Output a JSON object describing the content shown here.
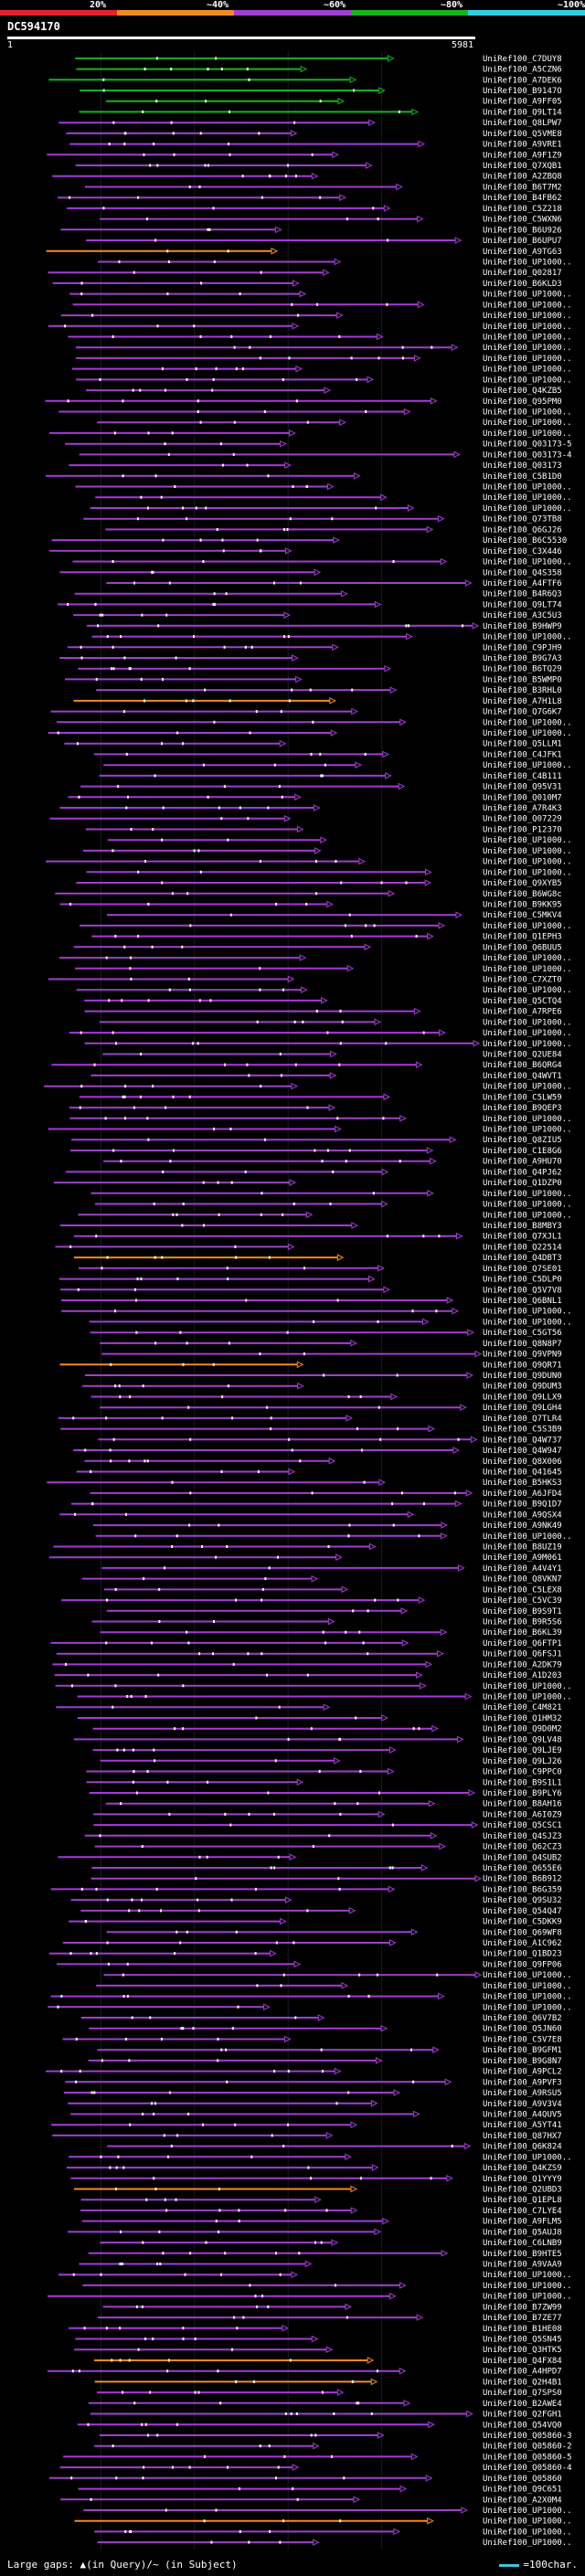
{
  "header": {
    "query_id": "DC594170",
    "ruler_start": "1",
    "ruler_end": "5981"
  },
  "legend": {
    "bins": [
      {
        "label": "20%",
        "color": "#e8202a"
      },
      {
        "label": "~40%",
        "color": "#f58a1f"
      },
      {
        "label": "~60%",
        "color": "#a23dd1"
      },
      {
        "label": "~80%",
        "color": "#13b51a"
      },
      {
        "label": "~100%",
        "color": "#2ad0e6"
      }
    ]
  },
  "footer": {
    "gaps_text": "Large gaps: ▲(in Query)/~ (in Subject)",
    "scale_text": "=100char."
  },
  "chart_data": {
    "type": "alignment-overview",
    "query_length": 5981,
    "hits": [
      "UniRef100_C7DUY8",
      "UniRef100_A5CZN6",
      "UniRef100_A7DEK6",
      "UniRef100_B9147O",
      "UniRef100_A9FF05",
      "UniRef100_Q9LT14",
      "UniRef100_Q8LPW7",
      "UniRef100_Q5VME8",
      "UniRef100_A9VRE1",
      "UniRef100_A9F1Z9",
      "UniRef100_Q7XQB1",
      "UniRef100_A2ZBQ8",
      "UniRef100_B6T7M2",
      "UniRef100_B4FB62",
      "UniRef100_C5Z218",
      "UniRef100_C5WXN6",
      "UniRef100_B6U926",
      "UniRef100_B6UPU7",
      "UniRef100_A9TG63",
      "UniRef100_UP1000..",
      "UniRef100_Q02817",
      "UniRef100_B6KLD3",
      "UniRef100_UP1000..",
      "UniRef100_UP1000..",
      "UniRef100_UP1000..",
      "UniRef100_UP1000..",
      "UniRef100_UP1000..",
      "UniRef100_UP1000..",
      "UniRef100_UP1000..",
      "UniRef100_UP1000..",
      "UniRef100_UP1000..",
      "UniRef100_Q4KZB5",
      "UniRef100_Q95PM0",
      "UniRef100_UP1000..",
      "UniRef100_UP1000..",
      "UniRef100_UP1000..",
      "UniRef100_Q03173-5",
      "UniRef100_Q03173-4",
      "UniRef100_Q03173",
      "UniRef100_C5B1D0",
      "UniRef100_UP1000..",
      "UniRef100_UP1000..",
      "UniRef100_UP1000..",
      "UniRef100_Q73TB8",
      "UniRef100_Q6GJ26",
      "UniRef100_B6C5530",
      "UniRef100_C3X446",
      "UniRef100_UP1000..",
      "UniRef100_Q4S358",
      "UniRef100_A4FTF6",
      "UniRef100_B4R6Q3",
      "UniRef100_Q9LT74",
      "UniRef100_A3C5U3",
      "UniRef100_B9HWP9",
      "UniRef100_UP1000..",
      "UniRef100_C9PJH9",
      "UniRef100_B9G7A3",
      "UniRef100_B6TQ29",
      "UniRef100_B5WMP0",
      "UniRef100_B3RHL0",
      "UniRef100_A7H1L8",
      "UniRef100_Q7G6K7",
      "UniRef100_UP1000..",
      "UniRef100_UP1000..",
      "UniRef100_Q5LLM1",
      "UniRef100_C4JFK1",
      "UniRef100_UP1000..",
      "UniRef100_C4B111",
      "UniRef100_Q95V31",
      "UniRef100_Q010M7",
      "UniRef100_A7R4K3",
      "UniRef100_Q07229",
      "UniRef100_P12370",
      "UniRef100_UP1000..",
      "UniRef100_UP1000..",
      "UniRef100_UP1000..",
      "UniRef100_UP1000..",
      "UniRef100_Q9XYB5",
      "UniRef100_B6WG8c",
      "UniRef100_B9KK95",
      "UniRef100_C5MKV4",
      "UniRef100_UP1000..",
      "UniRef100_Q1EPH3",
      "UniRef100_Q6BUU5",
      "UniRef100_UP1000..",
      "UniRef100_UP1000..",
      "UniRef100_C7XZT0",
      "UniRef100_UP1000..",
      "UniRef100_Q5CTQ4",
      "UniRef100_A7RPE6",
      "UniRef100_UP1000..",
      "UniRef100_UP1000..",
      "UniRef100_UP1000..",
      "UniRef100_Q2UE84",
      "UniRef100_B6QRG4",
      "UniRef100_Q4WVT1",
      "UniRef100_UP1000..",
      "UniRef100_C5LW59",
      "UniRef100_B9QEP3",
      "UniRef100_UP1000..",
      "UniRef100_UP1000..",
      "UniRef100_Q8ZIU5",
      "UniRef100_C1E8G6",
      "UniRef100_A9HU70",
      "UniRef100_Q4PJ62",
      "UniRef100_Q1DZP0",
      "UniRef100_UP1000..",
      "UniRef100_UP1000..",
      "UniRef100_UP1000..",
      "UniRef100_B8MBY3",
      "UniRef100_Q7XJL1",
      "UniRef100_Q22514",
      "UniRef100_Q4DBT3",
      "UniRef100_Q7SE01",
      "UniRef100_C5DLP0",
      "UniRef100_Q5V7V8",
      "UniRef100_Q6BNL1",
      "UniRef100_UP1000..",
      "UniRef100_UP1000..",
      "UniRef100_C5GT56",
      "UniRef100_Q8N8P7",
      "UniRef100_Q9VPN9",
      "UniRef100_Q9QR71",
      "UniRef100_Q9DUN0",
      "UniRef100_Q9DUM3",
      "UniRef100_Q9LLX9",
      "UniRef100_Q9LGH4",
      "UniRef100_Q7TLR4",
      "UniRef100_C5S3B9",
      "UniRef100_Q4W737",
      "UniRef100_Q4W947",
      "UniRef100_Q8X006",
      "UniRef100_Q41645",
      "UniRef100_B5HKS3",
      "UniRef100_A6JFD4",
      "UniRef100_B9Q1D7",
      "UniRef100_A9QSX4",
      "UniRef100_A9NK49",
      "UniRef100_UP1000..",
      "UniRef100_B8UZ19",
      "UniRef100_A9M061",
      "UniRef100_A4V4Y1",
      "UniRef100_Q8VKN7",
      "UniRef100_C5LEX8",
      "UniRef100_C5VC39",
      "UniRef100_B9S9T1",
      "UniRef100_B9R5S6",
      "UniRef100_B6KL39",
      "UniRef100_Q6FTP1",
      "UniRef100_Q6FSJ1",
      "UniRef100_A2DK79",
      "UniRef100_A1D203",
      "UniRef100_UP1000..",
      "UniRef100_UP1000..",
      "UniRef100_C4M821",
      "UniRef100_Q1HM32",
      "UniRef100_Q9D0M2",
      "UniRef100_Q9LV48",
      "UniRef100_Q9LJE9",
      "UniRef100_Q9LJ26",
      "UniRef100_C9PPC0",
      "UniRef100_B9S1L1",
      "UniRef100_B9PLY6",
      "UniRef100_B8AH16",
      "UniRef100_A6I0Z9",
      "UniRef100_Q5CSC1",
      "UniRef100_Q4SJZ3",
      "UniRef100_Q62CZ3",
      "UniRef100_Q4SUB2",
      "UniRef100_Q655E6",
      "UniRef100_B6B912",
      "UniRef100_B6G359",
      "UniRef100_Q9SU32",
      "UniRef100_Q54Q47",
      "UniRef100_C5DKK9",
      "UniRef100_Q69WF8",
      "UniRef100_A1C962",
      "UniRef100_Q1BD23",
      "UniRef100_Q9FP06",
      "UniRef100_UP1000..",
      "UniRef100_UP1000..",
      "UniRef100_UP1000..",
      "UniRef100_UP1000..",
      "UniRef100_Q6V7B2",
      "UniRef100_Q5JN60",
      "UniRef100_C5V7E8",
      "UniRef100_B9GFM1",
      "UniRef100_B9G8N7",
      "UniRef100_A9PCL2",
      "UniRef100_A9PVF3",
      "UniRef100_A9RSU5",
      "UniRef100_A9V3V4",
      "UniRef100_A4QUV5",
      "UniRef100_A5YT41",
      "UniRef100_Q87HX7",
      "UniRef100_Q6K824",
      "UniRef100_UP1000..",
      "UniRef100_Q4KZS9",
      "UniRef100_Q1YYY9",
      "UniRef100_Q2UBD3",
      "UniRef100_Q1EPL8",
      "UniRef100_C7LYE4",
      "UniRef100_A9FLM5",
      "UniRef100_Q5AUJ8",
      "UniRef100_C6LNB9",
      "UniRef100_B9HTE5",
      "UniRef100_A9VAA9",
      "UniRef100_UP1000..",
      "UniRef100_UP1000..",
      "UniRef100_UP1000..",
      "UniRef100_B7ZW99",
      "UniRef100_B7ZE77",
      "UniRef100_B1HE08",
      "UniRef100_Q5SN45",
      "UniRef100_Q3HTK5",
      "UniRef100_Q4FX84",
      "UniRef100_A4HPD7",
      "UniRef100_Q2H4B1",
      "UniRef100_Q7SPS0",
      "UniRef100_B2AWE4",
      "UniRef100_Q2FGH1",
      "UniRef100_Q54VQ0",
      "UniRef100_Q05860-3",
      "UniRef100_Q05860-2",
      "UniRef100_Q05860-5",
      "UniRef100_Q05860-4",
      "UniRef100_Q05860",
      "UniRef100_Q9C651",
      "UniRef100_A2X0M4",
      "UniRef100_UP1000..",
      "UniRef100_UP1000..",
      "UniRef100_UP1000..",
      "UniRef100_UP1000.."
    ]
  }
}
